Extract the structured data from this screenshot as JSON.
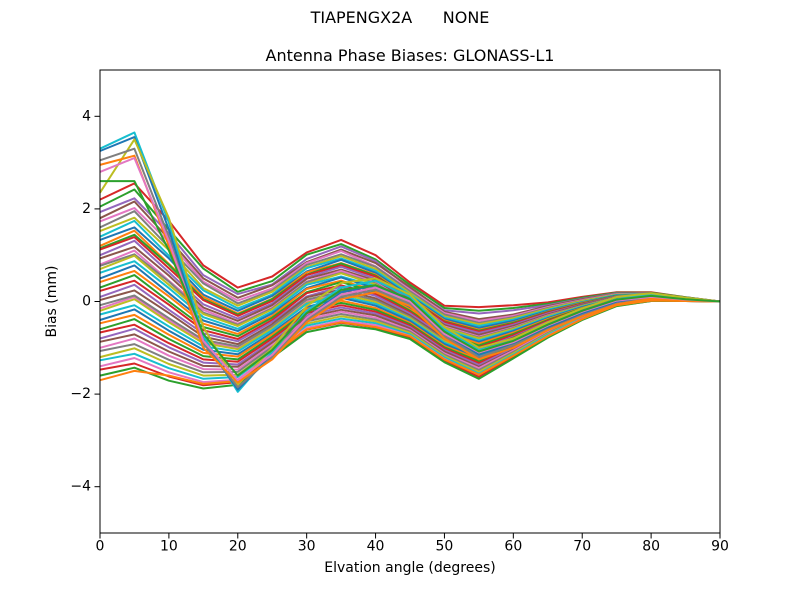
{
  "figure": {
    "suptitle": "TIAPENGX2A      NONE",
    "title": "Antenna Phase Biases: GLONASS-L1"
  },
  "colors": {
    "axis": "#000000",
    "background": "#ffffff",
    "text": "#000000"
  },
  "chart_data": {
    "type": "line",
    "suptitle": "TIAPENGX2A      NONE",
    "title": "Antenna Phase Biases: GLONASS-L1",
    "xlabel": "Elvation angle (degrees)",
    "ylabel": "Bias (mm)",
    "xlim": [
      0,
      90
    ],
    "ylim": [
      -5,
      5
    ],
    "x_ticks": [
      0,
      10,
      20,
      30,
      40,
      50,
      60,
      70,
      80,
      90
    ],
    "y_ticks": [
      -4,
      -2,
      0,
      2,
      4
    ],
    "grid": false,
    "legend_position": "none",
    "line_width": 2,
    "x": [
      0,
      5,
      10,
      15,
      20,
      25,
      30,
      35,
      40,
      45,
      50,
      55,
      60,
      65,
      70,
      75,
      80,
      85,
      90
    ],
    "series": [
      {
        "color": "#d62728",
        "values": [
          2.2,
          2.55,
          1.74,
          0.78,
          0.3,
          0.54,
          1.06,
          1.33,
          1.0,
          0.41,
          -0.09,
          -0.12,
          -0.08,
          -0.02,
          0.1,
          0.2,
          0.2,
          0.09,
          0
        ]
      },
      {
        "color": "#2ca02c",
        "values": [
          2.05,
          2.42,
          1.55,
          0.71,
          0.21,
          0.44,
          1.01,
          1.24,
          0.91,
          0.36,
          -0.14,
          -0.2,
          -0.14,
          -0.05,
          0.08,
          0.19,
          0.19,
          0.09,
          0
        ]
      },
      {
        "color": "#9467bd",
        "values": [
          1.93,
          2.23,
          1.47,
          0.57,
          0.16,
          0.37,
          0.92,
          1.19,
          0.87,
          0.28,
          -0.19,
          -0.26,
          -0.19,
          -0.08,
          0.06,
          0.18,
          0.18,
          0.08,
          0
        ]
      },
      {
        "color": "#8c564b",
        "values": [
          1.8,
          2.16,
          1.35,
          0.5,
          0.08,
          0.35,
          0.85,
          1.12,
          0.83,
          0.31,
          -0.22,
          -0.38,
          -0.28,
          -0.1,
          0.05,
          0.17,
          0.18,
          0.08,
          0
        ]
      },
      {
        "color": "#e377c2",
        "values": [
          1.73,
          2.02,
          1.29,
          0.43,
          0.02,
          0.28,
          0.83,
          1.09,
          0.76,
          0.25,
          -0.25,
          -0.42,
          -0.31,
          -0.12,
          0.03,
          0.16,
          0.17,
          0.08,
          0
        ]
      },
      {
        "color": "#7f7f7f",
        "values": [
          1.6,
          1.95,
          1.17,
          0.39,
          -0.04,
          0.24,
          0.79,
          1.02,
          0.75,
          0.22,
          -0.28,
          -0.46,
          -0.34,
          -0.14,
          0.02,
          0.15,
          0.17,
          0.08,
          0
        ]
      },
      {
        "color": "#bcbd22",
        "values": [
          1.52,
          1.81,
          1.11,
          0.29,
          -0.09,
          0.21,
          0.74,
          0.98,
          0.7,
          0.18,
          -0.32,
          -0.49,
          -0.36,
          -0.16,
          0.01,
          0.15,
          0.16,
          0.07,
          0
        ]
      },
      {
        "color": "#17becf",
        "values": [
          1.4,
          1.74,
          0.99,
          0.24,
          -0.15,
          0.15,
          0.72,
          0.93,
          0.66,
          0.15,
          -0.35,
          -0.53,
          -0.39,
          -0.18,
          -0.01,
          0.14,
          0.16,
          0.07,
          0
        ]
      },
      {
        "color": "#1f77b4",
        "values": [
          1.33,
          1.6,
          0.93,
          0.15,
          -0.2,
          0.12,
          0.65,
          0.9,
          0.62,
          0.12,
          -0.38,
          -0.57,
          -0.42,
          -0.2,
          -0.02,
          0.13,
          0.15,
          0.07,
          0
        ]
      },
      {
        "color": "#ff7f0e",
        "values": [
          1.2,
          1.53,
          0.81,
          0.1,
          -0.26,
          0.06,
          0.63,
          0.83,
          0.58,
          0.09,
          -0.41,
          -0.61,
          -0.45,
          -0.22,
          -0.03,
          0.12,
          0.15,
          0.07,
          0
        ]
      },
      {
        "color": "#2ca02c",
        "values": [
          1.15,
          1.44,
          0.79,
          0.05,
          -0.28,
          0.05,
          0.58,
          0.82,
          0.56,
          0.07,
          -0.43,
          -0.63,
          -0.46,
          -0.23,
          -0.04,
          0.12,
          0.14,
          0.07,
          0
        ]
      },
      {
        "color": "#d62728",
        "values": [
          1.12,
          1.39,
          0.72,
          0.03,
          -0.31,
          0.01,
          0.57,
          0.78,
          0.54,
          0.06,
          -0.44,
          -0.65,
          -0.48,
          -0.24,
          -0.05,
          0.11,
          0.14,
          0.07,
          0
        ]
      },
      {
        "color": "#9467bd",
        "values": [
          1.0,
          1.31,
          0.63,
          -0.06,
          -0.37,
          -0.04,
          0.52,
          0.75,
          0.49,
          0.02,
          -0.48,
          -0.68,
          -0.5,
          -0.26,
          -0.06,
          0.11,
          0.14,
          0.06,
          0
        ]
      },
      {
        "color": "#8c564b",
        "values": [
          0.93,
          1.18,
          0.56,
          -0.13,
          -0.42,
          -0.08,
          0.49,
          0.69,
          0.45,
          -0.01,
          -0.51,
          -0.72,
          -0.53,
          -0.28,
          -0.07,
          0.1,
          0.13,
          0.06,
          0
        ]
      },
      {
        "color": "#e377c2",
        "values": [
          0.8,
          1.1,
          0.45,
          -0.18,
          -0.48,
          -0.13,
          0.43,
          0.66,
          0.41,
          -0.04,
          -0.54,
          -0.76,
          -0.56,
          -0.3,
          -0.09,
          0.09,
          0.13,
          0.06,
          0
        ]
      },
      {
        "color": "#7f7f7f",
        "values": [
          0.77,
          1.02,
          0.43,
          -0.24,
          -0.5,
          -0.15,
          0.42,
          0.62,
          0.39,
          -0.06,
          -0.56,
          -0.78,
          -0.57,
          -0.31,
          -0.09,
          0.09,
          0.12,
          0.06,
          0
        ]
      },
      {
        "color": "#bcbd22",
        "values": [
          0.7,
          0.99,
          0.36,
          -0.27,
          -0.53,
          -0.17,
          0.38,
          0.61,
          0.37,
          -0.07,
          -0.57,
          -0.8,
          -0.59,
          -0.32,
          -0.1,
          0.08,
          0.12,
          0.06,
          0
        ]
      },
      {
        "color": "#17becf",
        "values": [
          0.62,
          0.87,
          0.29,
          -0.34,
          -0.59,
          -0.22,
          0.36,
          0.54,
          0.33,
          -0.1,
          -0.6,
          -0.84,
          -0.62,
          -0.34,
          -0.11,
          0.07,
          0.12,
          0.06,
          0
        ]
      },
      {
        "color": "#1f77b4",
        "values": [
          0.5,
          0.78,
          0.18,
          -0.41,
          -0.64,
          -0.26,
          0.29,
          0.52,
          0.28,
          -0.14,
          -0.64,
          -0.87,
          -0.64,
          -0.36,
          -0.12,
          0.07,
          0.11,
          0.05,
          0
        ]
      },
      {
        "color": "#ff7f0e",
        "values": [
          0.42,
          0.66,
          0.11,
          -0.48,
          -0.7,
          -0.31,
          0.27,
          0.45,
          0.24,
          -0.17,
          -0.67,
          -0.91,
          -0.67,
          -0.38,
          -0.14,
          0.06,
          0.11,
          0.05,
          0
        ]
      },
      {
        "color": "#2ca02c",
        "values": [
          0.3,
          0.57,
          0.0,
          -0.55,
          -0.75,
          -0.35,
          0.2,
          0.42,
          0.2,
          -0.2,
          -0.7,
          -0.95,
          -0.7,
          -0.4,
          -0.15,
          0.05,
          0.1,
          0.05,
          0
        ]
      },
      {
        "color": "#d62728",
        "values": [
          0.23,
          0.45,
          -0.07,
          -0.62,
          -0.81,
          -0.4,
          0.18,
          0.35,
          0.16,
          -0.23,
          -0.73,
          -0.99,
          -0.73,
          -0.42,
          -0.16,
          0.04,
          0.1,
          0.05,
          0
        ]
      },
      {
        "color": "#9467bd",
        "values": [
          0.1,
          0.36,
          -0.18,
          -0.69,
          -0.86,
          -0.44,
          0.11,
          0.32,
          0.12,
          -0.26,
          -0.76,
          -1.03,
          -0.76,
          -0.44,
          -0.18,
          0.03,
          0.09,
          0.05,
          0
        ]
      },
      {
        "color": "#8c564b",
        "values": [
          0.03,
          0.24,
          -0.25,
          -0.76,
          -0.92,
          -0.49,
          0.09,
          0.26,
          0.07,
          -0.3,
          -0.8,
          -1.06,
          -0.78,
          -0.46,
          -0.19,
          0.03,
          0.09,
          0.04,
          0
        ]
      },
      {
        "color": "#e377c2",
        "values": [
          -0.15,
          0.1,
          -0.41,
          -0.87,
          -1.0,
          -0.55,
          0.0,
          0.2,
          0.01,
          -0.34,
          -0.84,
          -1.12,
          -0.83,
          -0.49,
          -0.21,
          0.01,
          0.08,
          0.04,
          0
        ]
      },
      {
        "color": "#7f7f7f",
        "values": [
          -0.08,
          0.13,
          -0.36,
          -0.83,
          -0.97,
          -0.53,
          0.04,
          0.21,
          0.03,
          -0.33,
          -0.83,
          -1.1,
          -0.81,
          -0.48,
          -0.2,
          0.02,
          0.08,
          0.04,
          0
        ]
      },
      {
        "color": "#bcbd22",
        "values": [
          -0.2,
          0.05,
          -0.45,
          -0.9,
          -1.03,
          -0.58,
          -0.03,
          0.16,
          -0.01,
          -0.36,
          -0.86,
          -1.14,
          -0.84,
          -0.5,
          -0.22,
          0.01,
          0.08,
          0.04,
          0
        ]
      },
      {
        "color": "#17becf",
        "values": [
          -0.28,
          -0.08,
          -0.54,
          -0.97,
          -1.08,
          -0.62,
          -0.05,
          0.11,
          -0.05,
          -0.39,
          -0.89,
          -1.18,
          -0.87,
          -0.52,
          -0.23,
          0.0,
          0.07,
          0.04,
          0
        ]
      },
      {
        "color": "#1f77b4",
        "values": [
          -0.4,
          -0.17,
          -0.63,
          -1.04,
          -1.14,
          -0.67,
          -0.12,
          0.08,
          -0.09,
          -0.42,
          -0.92,
          -1.22,
          -0.9,
          -0.54,
          -0.24,
          -0.01,
          0.07,
          0.04,
          0
        ]
      },
      {
        "color": "#ff7f0e",
        "values": [
          -0.47,
          -0.29,
          -0.72,
          -1.11,
          -1.19,
          -0.71,
          -0.16,
          0.02,
          -0.14,
          -0.46,
          -0.96,
          -1.25,
          -0.92,
          -0.56,
          -0.25,
          -0.01,
          0.06,
          0.03,
          0
        ]
      },
      {
        "color": "#2ca02c",
        "values": [
          -0.6,
          -0.38,
          -0.81,
          -1.18,
          -1.25,
          -0.76,
          -0.21,
          -0.03,
          -0.18,
          -0.49,
          -0.99,
          -1.29,
          -0.95,
          -0.58,
          -0.27,
          -0.02,
          0.06,
          0.03,
          0
        ]
      },
      {
        "color": "#d62728",
        "values": [
          -0.67,
          -0.5,
          -0.9,
          -1.25,
          -1.3,
          -0.8,
          -0.25,
          -0.08,
          -0.22,
          -0.52,
          -1.02,
          -1.33,
          -0.98,
          -0.6,
          -0.28,
          -0.03,
          0.05,
          0.03,
          0
        ]
      },
      {
        "color": "#9467bd",
        "values": [
          -0.8,
          -0.59,
          -0.99,
          -1.32,
          -1.36,
          -0.85,
          -0.3,
          -0.13,
          -0.26,
          -0.55,
          -1.05,
          -1.37,
          -1.01,
          -0.62,
          -0.29,
          -0.04,
          0.05,
          0.03,
          0
        ]
      },
      {
        "color": "#8c564b",
        "values": [
          -0.87,
          -0.71,
          -1.08,
          -1.39,
          -1.41,
          -0.89,
          -0.34,
          -0.18,
          -0.3,
          -0.58,
          -1.08,
          -1.41,
          -1.04,
          -0.64,
          -0.31,
          -0.05,
          0.04,
          0.02,
          0
        ]
      },
      {
        "color": "#e377c2",
        "values": [
          -1.0,
          -0.8,
          -1.17,
          -1.46,
          -1.47,
          -0.94,
          -0.39,
          -0.22,
          -0.35,
          -0.62,
          -1.12,
          -1.44,
          -1.06,
          -0.66,
          -0.32,
          -0.05,
          0.04,
          0.02,
          0
        ]
      },
      {
        "color": "#7f7f7f",
        "values": [
          -1.07,
          -0.92,
          -1.26,
          -1.53,
          -1.52,
          -0.98,
          -0.43,
          -0.27,
          -0.39,
          -0.65,
          -1.15,
          -1.48,
          -1.09,
          -0.68,
          -0.33,
          -0.06,
          0.03,
          0.02,
          0
        ]
      },
      {
        "color": "#bcbd22",
        "values": [
          -1.2,
          -1.01,
          -1.35,
          -1.6,
          -1.58,
          -1.03,
          -0.48,
          -0.32,
          -0.43,
          -0.68,
          -1.18,
          -1.52,
          -1.12,
          -0.7,
          -0.35,
          -0.07,
          0.03,
          0.02,
          0
        ]
      },
      {
        "color": "#17becf",
        "values": [
          -1.27,
          -1.13,
          -1.44,
          -1.67,
          -1.63,
          -1.07,
          -0.52,
          -0.37,
          -0.47,
          -0.71,
          -1.21,
          -1.56,
          -1.15,
          -0.72,
          -0.36,
          -0.08,
          0.02,
          0.01,
          0
        ]
      },
      {
        "color": "#e377c2",
        "values": [
          -1.4,
          -1.22,
          -1.53,
          -1.74,
          -1.69,
          -1.12,
          -0.57,
          -0.42,
          -0.51,
          -0.74,
          -1.24,
          -1.6,
          -1.18,
          -0.74,
          -0.37,
          -0.09,
          0.02,
          0.01,
          0
        ]
      },
      {
        "color": "#d62728",
        "values": [
          -1.47,
          -1.34,
          -1.62,
          -1.81,
          -1.74,
          -1.16,
          -0.61,
          -0.46,
          -0.56,
          -0.78,
          -1.28,
          -1.63,
          -1.2,
          -0.76,
          -0.38,
          -0.09,
          0.01,
          0.01,
          0
        ]
      },
      {
        "color": "#2ca02c",
        "values": [
          -1.6,
          -1.43,
          -1.71,
          -1.88,
          -1.8,
          -1.21,
          -0.66,
          -0.51,
          -0.6,
          -0.81,
          -1.31,
          -1.67,
          -1.23,
          -0.78,
          -0.4,
          -0.1,
          0.01,
          0.01,
          0
        ]
      },
      {
        "color": "#ff7f0e",
        "values": [
          -1.7,
          -1.5,
          -1.6,
          -1.78,
          -1.72,
          -1.15,
          -0.6,
          -0.45,
          -0.55,
          -0.75,
          -1.25,
          -1.58,
          -1.17,
          -0.75,
          -0.38,
          -0.08,
          0.02,
          0.01,
          0
        ]
      },
      {
        "color": "#17becf",
        "values": [
          3.3,
          3.65,
          1.7,
          -0.75,
          -1.95,
          -1.1,
          -0.2,
          0.3,
          0.45,
          0.1,
          -0.6,
          -1.05,
          -0.85,
          -0.5,
          -0.2,
          0.05,
          0.15,
          0.05,
          0
        ]
      },
      {
        "color": "#1f77b4",
        "values": [
          3.25,
          3.55,
          1.55,
          -0.85,
          -1.9,
          -1.15,
          -0.35,
          0.2,
          0.35,
          0.0,
          -0.7,
          -1.15,
          -0.9,
          -0.55,
          -0.25,
          0.0,
          0.1,
          0.05,
          0
        ]
      },
      {
        "color": "#bcbd22",
        "values": [
          2.35,
          3.5,
          1.8,
          -0.55,
          -1.8,
          -1.0,
          -0.1,
          0.4,
          0.5,
          0.15,
          -0.55,
          -1.0,
          -0.8,
          -0.45,
          -0.15,
          0.1,
          0.18,
          0.08,
          0
        ]
      },
      {
        "color": "#7f7f7f",
        "values": [
          3.05,
          3.3,
          1.4,
          -0.9,
          -1.85,
          -1.2,
          -0.4,
          0.1,
          0.25,
          -0.05,
          -0.75,
          -1.2,
          -0.95,
          -0.6,
          -0.3,
          -0.05,
          0.08,
          0.03,
          0
        ]
      },
      {
        "color": "#ff7f0e",
        "values": [
          2.95,
          3.15,
          1.2,
          -1.0,
          -1.75,
          -1.25,
          -0.45,
          0.05,
          0.2,
          -0.1,
          -0.8,
          -1.25,
          -1.0,
          -0.62,
          -0.32,
          -0.06,
          0.06,
          0.02,
          0
        ]
      },
      {
        "color": "#e377c2",
        "values": [
          2.8,
          3.1,
          1.3,
          -0.85,
          -1.7,
          -1.15,
          -0.35,
          0.15,
          0.3,
          0.0,
          -0.7,
          -1.1,
          -0.88,
          -0.52,
          -0.22,
          0.02,
          0.1,
          0.04,
          0
        ]
      },
      {
        "color": "#2ca02c",
        "values": [
          2.6,
          2.6,
          1.1,
          -0.7,
          -1.6,
          -1.05,
          -0.25,
          0.25,
          0.35,
          0.05,
          -0.65,
          -1.08,
          -0.85,
          -0.5,
          -0.2,
          0.04,
          0.12,
          0.05,
          0
        ]
      }
    ]
  }
}
